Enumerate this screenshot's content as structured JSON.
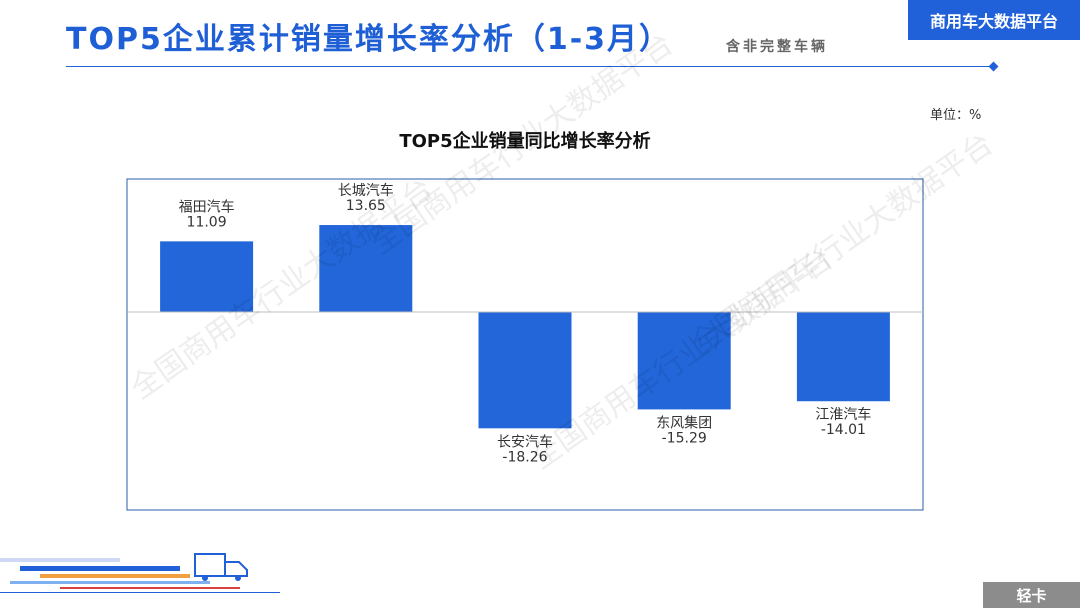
{
  "header": {
    "title": "TOP5企业累计销量增长率分析（1-3月）",
    "subtitle": "含非完整车辆",
    "brand": "商用车大数据平台"
  },
  "unit_label": "单位：%",
  "watermark": "全国商用车行业大数据平台",
  "footer": {
    "tag": "轻卡"
  },
  "colors": {
    "accent": "#2060d8",
    "bar": "#2266d9",
    "frame": "#2a5da8",
    "footer": "#8c8c8c"
  },
  "chart_data": {
    "type": "bar",
    "title": "TOP5企业销量同比增长率分析",
    "categories": [
      "福田汽车",
      "长城汽车",
      "长安汽车",
      "东风集团",
      "江淮汽车"
    ],
    "values": [
      11.09,
      13.65,
      -18.26,
      -15.29,
      -14.01
    ],
    "value_labels": [
      "11.09",
      "13.65",
      "-18.26",
      "-15.29",
      "-14.01"
    ],
    "ylim": [
      -30,
      20
    ],
    "grid": false,
    "legend": "none"
  }
}
